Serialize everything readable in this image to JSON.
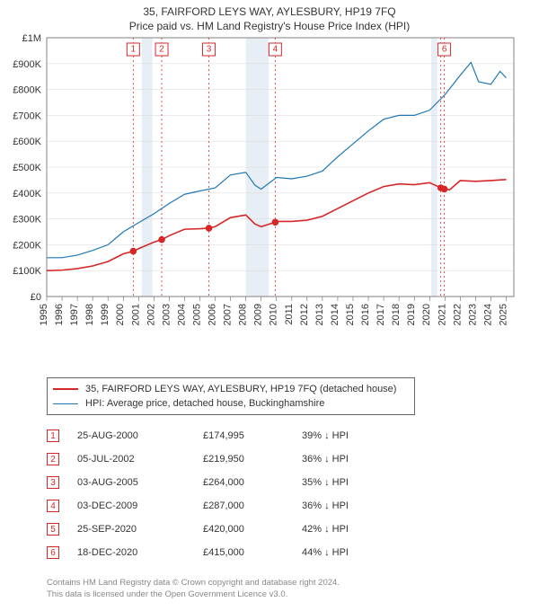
{
  "title": "35, FAIRFORD LEYS WAY, AYLESBURY, HP19 7FQ",
  "subtitle": "Price paid vs. HM Land Registry's House Price Index (HPI)",
  "chart": {
    "type": "line",
    "xlim": [
      1995,
      2025.5
    ],
    "ylim": [
      0,
      1000000
    ],
    "ytick_step": 100000,
    "ytick_labels": [
      "£0",
      "£100K",
      "£200K",
      "£300K",
      "£400K",
      "£500K",
      "£600K",
      "£700K",
      "£800K",
      "£900K",
      "£1M"
    ],
    "x_years": [
      1995,
      1996,
      1997,
      1998,
      1999,
      2000,
      2001,
      2002,
      2003,
      2004,
      2005,
      2006,
      2007,
      2008,
      2009,
      2010,
      2011,
      2012,
      2013,
      2014,
      2015,
      2016,
      2017,
      2018,
      2019,
      2020,
      2021,
      2022,
      2023,
      2024,
      2025
    ],
    "grid_color": "#dddddd",
    "axis_color": "#666666",
    "background_color": "#ffffff",
    "recession_bands": [
      {
        "from": 2001.2,
        "to": 2001.9
      },
      {
        "from": 2008.0,
        "to": 2009.5
      },
      {
        "from": 2020.1,
        "to": 2020.5
      }
    ],
    "series": [
      {
        "name": "hpi",
        "color": "#1f77b4",
        "width": 1.2,
        "points": [
          [
            1995.0,
            150000
          ],
          [
            1996.0,
            150000
          ],
          [
            1997.0,
            160000
          ],
          [
            1998.0,
            178000
          ],
          [
            1999.0,
            200000
          ],
          [
            2000.0,
            250000
          ],
          [
            2001.0,
            285000
          ],
          [
            2002.0,
            320000
          ],
          [
            2003.0,
            360000
          ],
          [
            2004.0,
            395000
          ],
          [
            2005.0,
            408000
          ],
          [
            2006.0,
            420000
          ],
          [
            2007.0,
            470000
          ],
          [
            2008.0,
            480000
          ],
          [
            2008.6,
            430000
          ],
          [
            2009.0,
            415000
          ],
          [
            2010.0,
            460000
          ],
          [
            2011.0,
            455000
          ],
          [
            2012.0,
            465000
          ],
          [
            2013.0,
            485000
          ],
          [
            2014.0,
            540000
          ],
          [
            2015.0,
            590000
          ],
          [
            2016.0,
            640000
          ],
          [
            2017.0,
            685000
          ],
          [
            2018.0,
            700000
          ],
          [
            2019.0,
            700000
          ],
          [
            2020.0,
            720000
          ],
          [
            2021.0,
            780000
          ],
          [
            2022.0,
            855000
          ],
          [
            2022.7,
            905000
          ],
          [
            2023.2,
            830000
          ],
          [
            2024.0,
            820000
          ],
          [
            2024.6,
            870000
          ],
          [
            2025.0,
            845000
          ]
        ]
      },
      {
        "name": "property",
        "color": "#d62728",
        "width": 1.6,
        "points": [
          [
            1995.0,
            100000
          ],
          [
            1996.0,
            102000
          ],
          [
            1997.0,
            108000
          ],
          [
            1998.0,
            118000
          ],
          [
            1999.0,
            135000
          ],
          [
            2000.0,
            165000
          ],
          [
            2000.65,
            174995
          ],
          [
            2001.0,
            185000
          ],
          [
            2002.0,
            210000
          ],
          [
            2002.5,
            219950
          ],
          [
            2003.0,
            235000
          ],
          [
            2004.0,
            260000
          ],
          [
            2005.0,
            262000
          ],
          [
            2005.6,
            264000
          ],
          [
            2006.0,
            270000
          ],
          [
            2007.0,
            305000
          ],
          [
            2008.0,
            315000
          ],
          [
            2008.6,
            280000
          ],
          [
            2009.0,
            270000
          ],
          [
            2009.9,
            287000
          ],
          [
            2010.0,
            290000
          ],
          [
            2011.0,
            290000
          ],
          [
            2012.0,
            295000
          ],
          [
            2013.0,
            310000
          ],
          [
            2014.0,
            340000
          ],
          [
            2015.0,
            370000
          ],
          [
            2016.0,
            400000
          ],
          [
            2017.0,
            425000
          ],
          [
            2018.0,
            435000
          ],
          [
            2019.0,
            432000
          ],
          [
            2020.0,
            440000
          ],
          [
            2020.73,
            420000
          ],
          [
            2020.96,
            415000
          ],
          [
            2021.0,
            418000
          ],
          [
            2021.3,
            412000
          ],
          [
            2022.0,
            448000
          ],
          [
            2023.0,
            445000
          ],
          [
            2024.0,
            448000
          ],
          [
            2025.0,
            452000
          ]
        ]
      }
    ],
    "sale_markers": [
      {
        "n": "1",
        "x": 2000.65,
        "y": 174995,
        "table_y": 70
      },
      {
        "n": "2",
        "x": 2002.51,
        "y": 219950,
        "table_y": 70
      },
      {
        "n": "3",
        "x": 2005.59,
        "y": 264000,
        "table_y": 70
      },
      {
        "n": "4",
        "x": 2009.92,
        "y": 287000,
        "table_y": 70
      },
      {
        "n": "5",
        "x": 2020.73,
        "y": 420000,
        "table_y": 70,
        "hide_top": true
      },
      {
        "n": "6",
        "x": 2020.96,
        "y": 415000,
        "table_y": 70
      }
    ]
  },
  "legend": {
    "rows": [
      {
        "color": "#d62728",
        "width": 2,
        "label": "35, FAIRFORD LEYS WAY, AYLESBURY, HP19 7FQ (detached house)"
      },
      {
        "color": "#1f77b4",
        "width": 1,
        "label": "HPI: Average price, detached house, Buckinghamshire"
      }
    ]
  },
  "sales_table": {
    "rows": [
      {
        "n": "1",
        "date": "25-AUG-2000",
        "price": "£174,995",
        "diff": "39% ↓ HPI"
      },
      {
        "n": "2",
        "date": "05-JUL-2002",
        "price": "£219,950",
        "diff": "36% ↓ HPI"
      },
      {
        "n": "3",
        "date": "03-AUG-2005",
        "price": "£264,000",
        "diff": "35% ↓ HPI"
      },
      {
        "n": "4",
        "date": "03-DEC-2009",
        "price": "£287,000",
        "diff": "36% ↓ HPI"
      },
      {
        "n": "5",
        "date": "25-SEP-2020",
        "price": "£420,000",
        "diff": "42% ↓ HPI"
      },
      {
        "n": "6",
        "date": "18-DEC-2020",
        "price": "£415,000",
        "diff": "44% ↓ HPI"
      }
    ]
  },
  "footnote_l1": "Contains HM Land Registry data © Crown copyright and database right 2024.",
  "footnote_l2": "This data is licensed under the Open Government Licence v3.0."
}
